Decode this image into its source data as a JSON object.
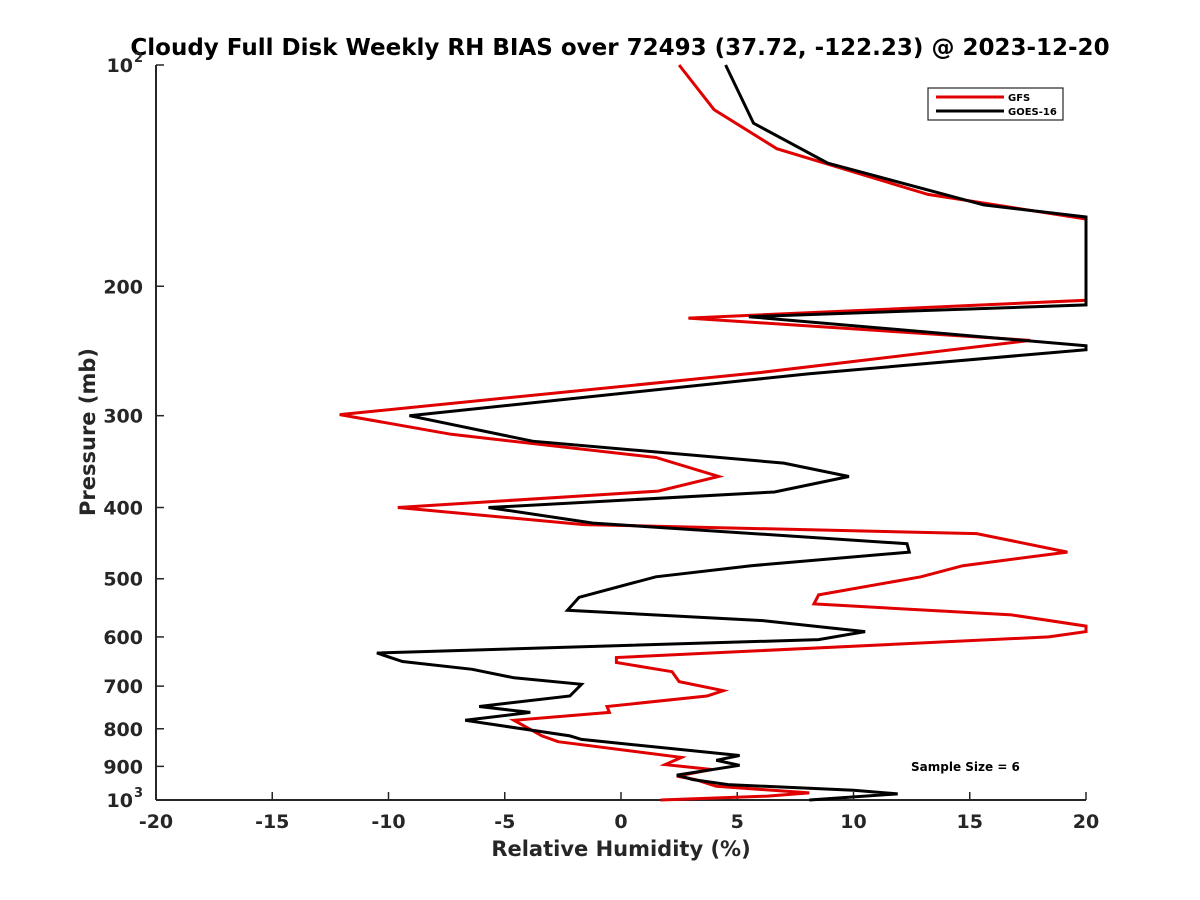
{
  "chart_data": {
    "type": "line",
    "title": "Cloudy Full Disk Weekly RH BIAS over 72493 (37.72, -122.23) @ 2023-12-20",
    "xlabel": "Relative Humidity (%)",
    "ylabel": "Pressure (mb)",
    "xlim": [
      -20,
      20
    ],
    "ylim": [
      100,
      1000
    ],
    "y_scale": "log",
    "y_reversed": true,
    "x_ticks": [
      "-20",
      "-15",
      "-10",
      "-5",
      "0",
      "5",
      "10",
      "15",
      "20"
    ],
    "y_ticks": [
      {
        "value": 100,
        "base": "10",
        "exp": "2"
      },
      {
        "value": 200,
        "base": "200",
        "exp": ""
      },
      {
        "value": 300,
        "base": "300",
        "exp": ""
      },
      {
        "value": 400,
        "base": "400",
        "exp": ""
      },
      {
        "value": 500,
        "base": "500",
        "exp": ""
      },
      {
        "value": 600,
        "base": "600",
        "exp": ""
      },
      {
        "value": 700,
        "base": "700",
        "exp": ""
      },
      {
        "value": 800,
        "base": "800",
        "exp": ""
      },
      {
        "value": 900,
        "base": "900",
        "exp": ""
      },
      {
        "value": 1000,
        "base": "10",
        "exp": "3"
      }
    ],
    "grid": false,
    "legend_position": "top-right",
    "annotation": "Sample Size = 6",
    "series": [
      {
        "name": "GFS",
        "color": "#e00000",
        "points": [
          [
            2.5,
            100
          ],
          [
            4,
            115
          ],
          [
            6.7,
            130
          ],
          [
            13.2,
            150
          ],
          [
            20,
            162
          ],
          [
            20,
            209
          ],
          [
            2.9,
            221
          ],
          [
            17.6,
            237
          ],
          [
            6,
            262
          ],
          [
            -12.1,
            299
          ],
          [
            -7.3,
            318
          ],
          [
            1.5,
            342
          ],
          [
            4.2,
            363
          ],
          [
            1.6,
            380
          ],
          [
            -9.6,
            400
          ],
          [
            -1.6,
            422
          ],
          [
            15.3,
            434
          ],
          [
            19.2,
            460
          ],
          [
            14.7,
            480
          ],
          [
            12.9,
            497
          ],
          [
            8.5,
            526
          ],
          [
            8.3,
            541
          ],
          [
            16.8,
            560
          ],
          [
            20,
            580
          ],
          [
            20,
            590
          ],
          [
            18.4,
            600
          ],
          [
            -0.2,
            640
          ],
          [
            -0.2,
            650
          ],
          [
            2.2,
            669
          ],
          [
            2.5,
            690
          ],
          [
            4.4,
            710
          ],
          [
            3.7,
            722
          ],
          [
            -0.6,
            746
          ],
          [
            -0.5,
            760
          ],
          [
            -4.6,
            779
          ],
          [
            -3.4,
            818
          ],
          [
            -2.7,
            833
          ],
          [
            2.6,
            875
          ],
          [
            1.9,
            895
          ],
          [
            3.9,
            909
          ],
          [
            2.4,
            928
          ],
          [
            3.2,
            938
          ],
          [
            4.1,
            958
          ],
          [
            8.1,
            978
          ],
          [
            6.3,
            988
          ],
          [
            1.7,
            1000
          ]
        ]
      },
      {
        "name": "GOES-16",
        "color": "#000000",
        "points": [
          [
            4.5,
            100
          ],
          [
            5.7,
            120
          ],
          [
            8.9,
            136
          ],
          [
            15.6,
            155
          ],
          [
            20,
            161
          ],
          [
            20,
            212
          ],
          [
            5.5,
            220
          ],
          [
            20,
            241
          ],
          [
            20,
            244
          ],
          [
            8.1,
            263
          ],
          [
            -9.1,
            300
          ],
          [
            -3.8,
            325
          ],
          [
            7,
            348
          ],
          [
            9.8,
            363
          ],
          [
            6.6,
            381
          ],
          [
            -5.7,
            400
          ],
          [
            -1.2,
            420
          ],
          [
            12.3,
            448
          ],
          [
            12.4,
            460
          ],
          [
            5.6,
            480
          ],
          [
            1.5,
            497
          ],
          [
            -1.8,
            530
          ],
          [
            -2.3,
            552
          ],
          [
            6.1,
            570
          ],
          [
            10.5,
            590
          ],
          [
            8.5,
            605
          ],
          [
            -10.5,
            631
          ],
          [
            -9.4,
            648
          ],
          [
            -6.4,
            664
          ],
          [
            -4.6,
            682
          ],
          [
            -1.7,
            696
          ],
          [
            -2.2,
            722
          ],
          [
            -6.1,
            746
          ],
          [
            -3.9,
            760
          ],
          [
            -6.7,
            779
          ],
          [
            -2.2,
            818
          ],
          [
            -1.7,
            827
          ],
          [
            5.1,
            870
          ],
          [
            4.1,
            883
          ],
          [
            5.1,
            897
          ],
          [
            2.4,
            925
          ],
          [
            3.1,
            938
          ],
          [
            4.6,
            953
          ],
          [
            10,
            970
          ],
          [
            11.9,
            981
          ],
          [
            8.1,
            1000
          ]
        ]
      }
    ]
  }
}
